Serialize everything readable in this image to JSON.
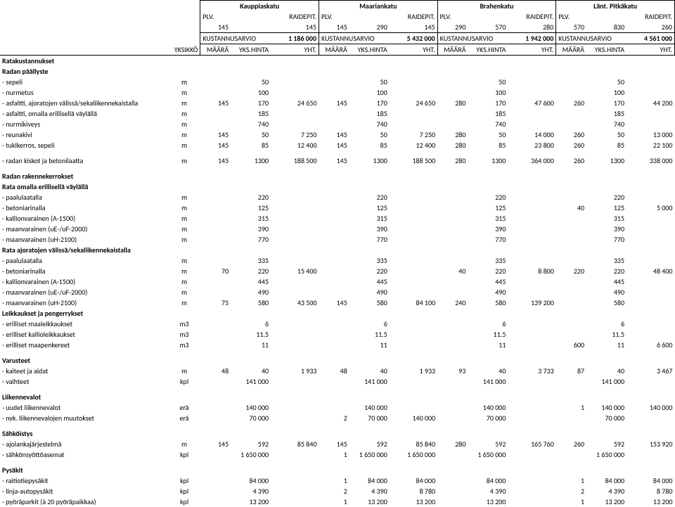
{
  "streets": [
    "Kauppiaskatu",
    "Maariankatu",
    "Brahenkatu",
    "Länt. Pitkäkatu"
  ],
  "header": {
    "plv": "PLV.",
    "raidepit": "RAIDEPIT.",
    "kust": "KUSTANNUSARVIO",
    "yks": "YKSIKKÖ",
    "maara": "MÄÄRÄ",
    "ykshinta": "YKS.HINTA",
    "yht": "YHT."
  },
  "plv_row": [
    [
      "145",
      "145"
    ],
    [
      "145",
      "290",
      "145"
    ],
    [
      "290",
      "570",
      "280"
    ],
    [
      "570",
      "830",
      "260"
    ]
  ],
  "kust_totals": [
    "1 186 000",
    "5 432 000",
    "1 942 000",
    "4 561 000"
  ],
  "sections": {
    "rataku": "Ratakustannukset",
    "radanp": "Radan päällyste",
    "radank": "Radan rakennekerrokset",
    "rataom": "Rata omalla erillisellä väylällä",
    "rataaj": "Rata ajoratojen välissä/sekaliikennekaistalla",
    "leikk": "Leikkaukset ja pengerrykset",
    "varust": "Varusteet",
    "liik": "Liikennevalot",
    "sahk": "Sähköistys",
    "pysak": "Pysäkit"
  },
  "rows": [
    {
      "name": "- sepeli",
      "u": "m",
      "c": [
        [
          "",
          "50",
          ""
        ],
        [
          "",
          "50",
          ""
        ],
        [
          "",
          "50",
          ""
        ],
        [
          "",
          "50",
          ""
        ]
      ]
    },
    {
      "name": "- nurmetus",
      "u": "m",
      "c": [
        [
          "",
          "100",
          ""
        ],
        [
          "",
          "100",
          ""
        ],
        [
          "",
          "100",
          ""
        ],
        [
          "",
          "100",
          ""
        ]
      ]
    },
    {
      "name": "- asfaltti, ajoratojen välissä/sekaliikennekaistalla",
      "u": "m",
      "c": [
        [
          "145",
          "170",
          "24 650"
        ],
        [
          "145",
          "170",
          "24 650"
        ],
        [
          "280",
          "170",
          "47 600"
        ],
        [
          "260",
          "170",
          "44 200"
        ]
      ]
    },
    {
      "name": "- asfaltti, omalla erillisellä väylällä",
      "u": "m",
      "c": [
        [
          "",
          "185",
          ""
        ],
        [
          "",
          "185",
          ""
        ],
        [
          "",
          "185",
          ""
        ],
        [
          "",
          "185",
          ""
        ]
      ]
    },
    {
      "name": "- nurmikiveys",
      "u": "m",
      "c": [
        [
          "",
          "740",
          ""
        ],
        [
          "",
          "740",
          ""
        ],
        [
          "",
          "740",
          ""
        ],
        [
          "",
          "740",
          ""
        ]
      ]
    },
    {
      "name": "- reunakivi",
      "u": "m",
      "c": [
        [
          "145",
          "50",
          "7 250"
        ],
        [
          "145",
          "50",
          "7 250"
        ],
        [
          "280",
          "50",
          "14 000"
        ],
        [
          "260",
          "50",
          "13 000"
        ]
      ]
    },
    {
      "name": "- tukikerros, sepeli",
      "u": "m",
      "c": [
        [
          "145",
          "85",
          "12 400"
        ],
        [
          "145",
          "85",
          "12 400"
        ],
        [
          "280",
          "85",
          "23 800"
        ],
        [
          "260",
          "85",
          "22 100"
        ]
      ]
    },
    {
      "name": "- radan kiskot ja betonilaatta",
      "u": "m",
      "c": [
        [
          "145",
          "1300",
          "188 500"
        ],
        [
          "145",
          "1300",
          "188 500"
        ],
        [
          "280",
          "1300",
          "364 000"
        ],
        [
          "260",
          "1300",
          "338 000"
        ]
      ]
    },
    {
      "name": "- paalulaatalla",
      "u": "m",
      "c": [
        [
          "",
          "220",
          ""
        ],
        [
          "",
          "220",
          ""
        ],
        [
          "",
          "220",
          ""
        ],
        [
          "",
          "220",
          ""
        ]
      ]
    },
    {
      "name": "- betoniarinalla",
      "u": "m",
      "c": [
        [
          "",
          "125",
          ""
        ],
        [
          "",
          "125",
          ""
        ],
        [
          "",
          "125",
          ""
        ],
        [
          "40",
          "125",
          "5 000"
        ]
      ]
    },
    {
      "name": "- kallionvarainen (A-1500)",
      "u": "m",
      "c": [
        [
          "",
          "315",
          ""
        ],
        [
          "",
          "315",
          ""
        ],
        [
          "",
          "315",
          ""
        ],
        [
          "",
          "315",
          ""
        ]
      ]
    },
    {
      "name": "- maanvarainen (uE-/uF-2000)",
      "u": "m",
      "c": [
        [
          "",
          "390",
          ""
        ],
        [
          "",
          "390",
          ""
        ],
        [
          "",
          "390",
          ""
        ],
        [
          "",
          "390",
          ""
        ]
      ]
    },
    {
      "name": "- maanvarainen (uH-2100)",
      "u": "m",
      "c": [
        [
          "",
          "770",
          ""
        ],
        [
          "",
          "770",
          ""
        ],
        [
          "",
          "770",
          ""
        ],
        [
          "",
          "770",
          ""
        ]
      ]
    },
    {
      "name": "- paalulaatalla",
      "u": "m",
      "c": [
        [
          "",
          "335",
          ""
        ],
        [
          "",
          "335",
          ""
        ],
        [
          "",
          "335",
          ""
        ],
        [
          "",
          "335",
          ""
        ]
      ]
    },
    {
      "name": "- betoniarinalla",
      "u": "m",
      "c": [
        [
          "70",
          "220",
          "15 400"
        ],
        [
          "",
          "220",
          ""
        ],
        [
          "40",
          "220",
          "8 800"
        ],
        [
          "220",
          "220",
          "48 400"
        ]
      ]
    },
    {
      "name": "- kallionvarainen (A-1500)",
      "u": "m",
      "c": [
        [
          "",
          "445",
          ""
        ],
        [
          "",
          "445",
          ""
        ],
        [
          "",
          "445",
          ""
        ],
        [
          "",
          "445",
          ""
        ]
      ]
    },
    {
      "name": "- maanvarainen (uE-/uF-2000)",
      "u": "m",
      "c": [
        [
          "",
          "490",
          ""
        ],
        [
          "",
          "490",
          ""
        ],
        [
          "",
          "490",
          ""
        ],
        [
          "",
          "490",
          ""
        ]
      ]
    },
    {
      "name": "- maanvarainen (uH-2100)",
      "u": "m",
      "c": [
        [
          "75",
          "580",
          "43 500"
        ],
        [
          "145",
          "580",
          "84 100"
        ],
        [
          "240",
          "580",
          "139 200"
        ],
        [
          "",
          "580",
          ""
        ]
      ]
    },
    {
      "name": "- erilliset maaleikkaukset",
      "u": "m3",
      "c": [
        [
          "",
          "6",
          ""
        ],
        [
          "",
          "6",
          ""
        ],
        [
          "",
          "6",
          ""
        ],
        [
          "",
          "6",
          ""
        ]
      ]
    },
    {
      "name": "- erilliset kallioleikkaukset",
      "u": "m3",
      "c": [
        [
          "",
          "11.5",
          ""
        ],
        [
          "",
          "11.5",
          ""
        ],
        [
          "",
          "11.5",
          ""
        ],
        [
          "",
          "11.5",
          ""
        ]
      ]
    },
    {
      "name": "- erilliset maapenkereet",
      "u": "m3",
      "c": [
        [
          "",
          "11",
          ""
        ],
        [
          "",
          "11",
          ""
        ],
        [
          "",
          "11",
          ""
        ],
        [
          "600",
          "11",
          "6 600"
        ]
      ]
    },
    {
      "name": "- kaiteet ja aidat",
      "u": "m",
      "c": [
        [
          "48",
          "40",
          "1 933"
        ],
        [
          "48",
          "40",
          "1 933"
        ],
        [
          "93",
          "40",
          "3 733"
        ],
        [
          "87",
          "40",
          "3 467"
        ]
      ]
    },
    {
      "name": "- vaihteet",
      "u": "kpl",
      "c": [
        [
          "",
          "141 000",
          ""
        ],
        [
          "",
          "141 000",
          ""
        ],
        [
          "",
          "141 000",
          ""
        ],
        [
          "",
          "141 000",
          ""
        ]
      ]
    },
    {
      "name": "- uudet liikennevalot",
      "u": "erä",
      "c": [
        [
          "",
          "140 000",
          ""
        ],
        [
          "",
          "140 000",
          ""
        ],
        [
          "",
          "140 000",
          ""
        ],
        [
          "1",
          "140 000",
          "140 000"
        ]
      ]
    },
    {
      "name": "- nyk. liikennevalojen muutokset",
      "u": "erä",
      "c": [
        [
          "",
          "70 000",
          ""
        ],
        [
          "2",
          "70 000",
          "140 000"
        ],
        [
          "",
          "70 000",
          ""
        ],
        [
          "",
          "70 000",
          ""
        ]
      ]
    },
    {
      "name": "- ajolankajärjestelmä",
      "u": "m",
      "c": [
        [
          "145",
          "592",
          "85 840"
        ],
        [
          "145",
          "592",
          "85 840"
        ],
        [
          "280",
          "592",
          "165 760"
        ],
        [
          "260",
          "592",
          "153 920"
        ]
      ]
    },
    {
      "name": "- sähkönsyöttöasemat",
      "u": "kpl",
      "c": [
        [
          "",
          "1 650 000",
          ""
        ],
        [
          "1",
          "1 650 000",
          "1 650 000"
        ],
        [
          "",
          "1 650 000",
          ""
        ],
        [
          "",
          "1 650 000",
          ""
        ]
      ]
    },
    {
      "name": "- raitiotiepysäkit",
      "u": "kpl",
      "c": [
        [
          "",
          "84 000",
          ""
        ],
        [
          "1",
          "84 000",
          "84 000"
        ],
        [
          "",
          "84 000",
          ""
        ],
        [
          "1",
          "84 000",
          "84 000"
        ]
      ]
    },
    {
      "name": "- linja-autopysäkit",
      "u": "kpl",
      "c": [
        [
          "",
          "4 390",
          ""
        ],
        [
          "2",
          "4 390",
          "8 780"
        ],
        [
          "",
          "4 390",
          ""
        ],
        [
          "2",
          "4 390",
          "8 780"
        ]
      ]
    },
    {
      "name": "- pyöräparkit (à 20 pyöräpaikkaa)",
      "u": "kpl",
      "c": [
        [
          "",
          "13 200",
          ""
        ],
        [
          "1",
          "13 200",
          "13 200"
        ],
        [
          "",
          "13 200",
          ""
        ],
        [
          "1",
          "13 200",
          "13 200"
        ]
      ]
    }
  ]
}
